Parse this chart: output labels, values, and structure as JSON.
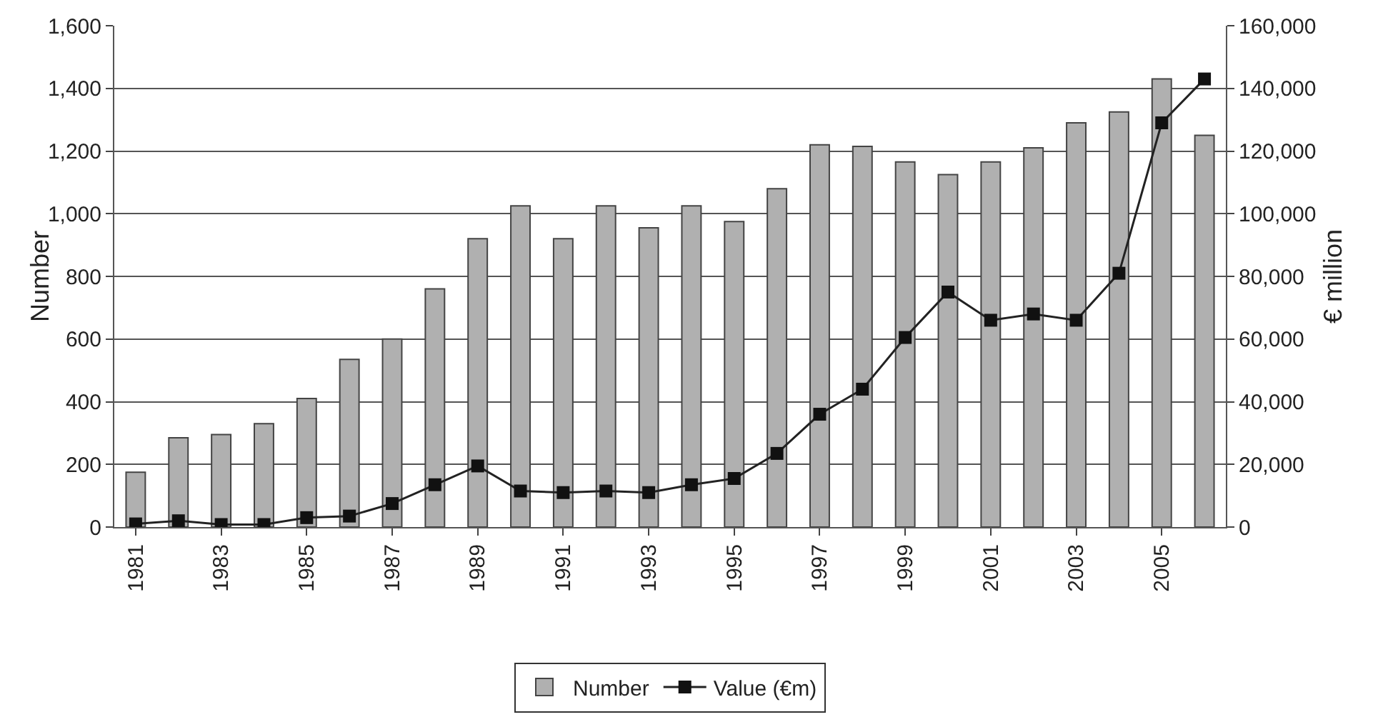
{
  "chart_data": {
    "type": "bar",
    "ylabel": "Number",
    "y2label": "€ million",
    "categories": [
      "1981",
      null,
      "1983",
      null,
      "1985",
      null,
      "1987",
      null,
      "1989",
      null,
      "1991",
      null,
      "1993",
      null,
      "1995",
      null,
      "1997",
      null,
      "1999",
      null,
      "2001",
      null,
      "2003",
      null,
      "2005",
      null
    ],
    "series": [
      {
        "name": "Number",
        "color": "#b0b0b0",
        "values": [
          175,
          285,
          295,
          330,
          410,
          535,
          600,
          760,
          920,
          1025,
          920,
          1025,
          955,
          1025,
          975,
          1080,
          1220,
          1215,
          1165,
          1125,
          1165,
          1210,
          1290,
          1325,
          1430,
          1250
        ]
      },
      {
        "name": "Value (€m)",
        "type": "line",
        "axis": "y2",
        "color": "#222222",
        "marker": "square",
        "line_style": "solid",
        "values": [
          1000,
          2000,
          800,
          800,
          3000,
          3500,
          7500,
          13500,
          19500,
          11500,
          11000,
          11500,
          11000,
          13500,
          15500,
          23500,
          36000,
          44000,
          60500,
          75000,
          66000,
          68000,
          66000,
          81000,
          129000,
          143000
        ]
      }
    ],
    "ylim": [
      0,
      1600
    ],
    "yticks": [
      0,
      {
        "value": 200,
        "label": "200"
      },
      {
        "value": 400,
        "label": "400"
      },
      {
        "value": 600,
        "label": "600"
      },
      {
        "value": 800,
        "label": "800"
      },
      {
        "value": 1000,
        "label": "1,000"
      },
      {
        "value": 1200,
        "label": "1,200"
      },
      {
        "value": 1400,
        "label": "1,400"
      },
      {
        "value": 1600,
        "label": "1,600"
      }
    ],
    "y2lim": [
      0,
      160000
    ],
    "y2ticks": [
      0,
      {
        "value": 20000,
        "label": "20,000"
      },
      {
        "value": 40000,
        "label": "40,000"
      },
      {
        "value": 60000,
        "label": "60,000"
      },
      {
        "value": 80000,
        "label": "80,000"
      },
      {
        "value": 100000,
        "label": "100,000"
      },
      {
        "value": 120000,
        "label": "120,000"
      },
      {
        "value": 140000,
        "label": "140,000"
      },
      {
        "value": 160000,
        "label": "160,000"
      }
    ],
    "grid": "y",
    "legend": "bottom"
  }
}
